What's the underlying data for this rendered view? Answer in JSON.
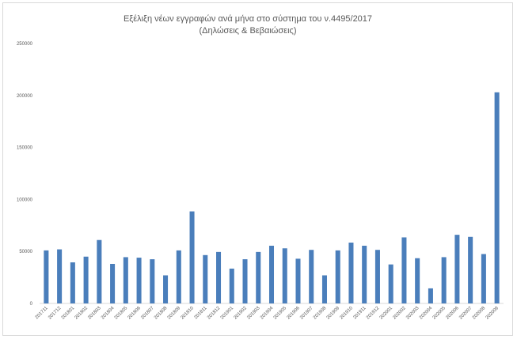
{
  "chart_data": {
    "type": "bar",
    "title": "Εξέλιξη νέων εγγραφών ανά μήνα στο σύστημα του ν.4495/2017",
    "subtitle": "(Δηλώσεις & Βεβαιώσεις)",
    "xlabel": "",
    "ylabel": "",
    "ylim": [
      0,
      250000
    ],
    "yticks": [
      "0",
      "50000",
      "100000",
      "150000",
      "200000",
      "250000"
    ],
    "ytick_values": [
      0,
      50000,
      100000,
      150000,
      200000,
      250000
    ],
    "grid": false,
    "legend": "none",
    "bar_color": "#4a7ebb",
    "categories": [
      "201711",
      "201712",
      "201801",
      "201802",
      "201803",
      "201804",
      "201805",
      "201806",
      "201807",
      "201808",
      "201809",
      "201810",
      "201811",
      "201812",
      "201901",
      "201902",
      "201903",
      "201904",
      "201905",
      "201906",
      "201907",
      "201908",
      "201909",
      "201910",
      "201911",
      "201912",
      "202001",
      "202002",
      "202003",
      "202004",
      "202005",
      "202006",
      "202007",
      "202008",
      "202009"
    ],
    "values": [
      51000,
      52000,
      39500,
      45000,
      61000,
      38000,
      44500,
      44000,
      42500,
      27000,
      51000,
      88500,
      46500,
      49500,
      33500,
      42500,
      49500,
      55500,
      53000,
      43000,
      51500,
      27000,
      51000,
      58500,
      55500,
      51500,
      37500,
      63500,
      43500,
      14500,
      44500,
      66000,
      64000,
      47500,
      203000
    ]
  }
}
